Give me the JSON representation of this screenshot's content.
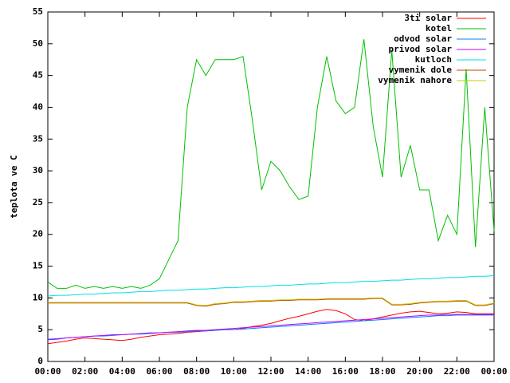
{
  "chart_data": {
    "type": "line",
    "ylabel": "teplota ve C",
    "legend": "top-right",
    "grid": false,
    "xlim": [
      0,
      24
    ],
    "ylim": [
      0,
      55
    ],
    "xticks": [
      {
        "value": 0,
        "label": "00:00"
      },
      {
        "value": 2,
        "label": "02:00"
      },
      {
        "value": 4,
        "label": "04:00"
      },
      {
        "value": 6,
        "label": "06:00"
      },
      {
        "value": 8,
        "label": "08:00"
      },
      {
        "value": 10,
        "label": "10:00"
      },
      {
        "value": 12,
        "label": "12:00"
      },
      {
        "value": 14,
        "label": "14:00"
      },
      {
        "value": 16,
        "label": "16:00"
      },
      {
        "value": 18,
        "label": "18:00"
      },
      {
        "value": 20,
        "label": "20:00"
      },
      {
        "value": 22,
        "label": "22:00"
      },
      {
        "value": 24,
        "label": "00:00"
      }
    ],
    "yticks": [
      0,
      5,
      10,
      15,
      20,
      25,
      30,
      35,
      40,
      45,
      50,
      55
    ],
    "x": [
      0,
      0.5,
      1,
      1.5,
      2,
      2.5,
      3,
      3.5,
      4,
      4.5,
      5,
      5.5,
      6,
      6.5,
      7,
      7.5,
      8,
      8.5,
      9,
      9.5,
      10,
      10.5,
      11,
      11.5,
      12,
      12.5,
      13,
      13.5,
      14,
      14.5,
      15,
      15.5,
      16,
      16.5,
      17,
      17.5,
      18,
      18.5,
      19,
      19.5,
      20,
      20.5,
      21,
      21.5,
      22,
      22.5,
      23,
      23.5,
      24
    ],
    "series": [
      {
        "name": "3ti solar",
        "color": "#ff0000",
        "values": [
          2.8,
          3.0,
          3.2,
          3.5,
          3.7,
          3.6,
          3.5,
          3.4,
          3.3,
          3.5,
          3.8,
          4.0,
          4.2,
          4.3,
          4.4,
          4.6,
          4.7,
          4.8,
          4.9,
          5.0,
          5.0,
          5.2,
          5.5,
          5.7,
          6.0,
          6.4,
          6.8,
          7.1,
          7.5,
          7.9,
          8.2,
          8.0,
          7.5,
          6.6,
          6.4,
          6.7,
          7.0,
          7.3,
          7.6,
          7.8,
          7.9,
          7.7,
          7.5,
          7.6,
          7.8,
          7.7,
          7.5,
          7.5,
          7.5
        ]
      },
      {
        "name": "kotel",
        "color": "#00c000",
        "values": [
          12.5,
          11.5,
          11.5,
          12,
          11.5,
          11.8,
          11.5,
          11.8,
          11.5,
          11.8,
          11.5,
          12,
          13,
          16,
          19,
          40,
          47.5,
          45,
          47.5,
          47.5,
          47.5,
          48,
          38,
          27,
          31.5,
          30,
          27.5,
          25.5,
          26,
          40,
          48,
          41,
          39,
          40,
          50.7,
          37,
          29,
          49,
          29,
          34,
          27,
          27,
          19,
          23,
          20,
          46,
          18,
          40,
          20.5
        ]
      },
      {
        "name": "odvod solar",
        "color": "#0080ff",
        "values": [
          3.5,
          3.6,
          3.7,
          3.8,
          3.9,
          4.0,
          4.0,
          4.1,
          4.2,
          4.3,
          4.3,
          4.4,
          4.5,
          4.6,
          4.6,
          4.7,
          4.8,
          4.8,
          4.9,
          5.0,
          5.0,
          5.1,
          5.2,
          5.3,
          5.4,
          5.5,
          5.6,
          5.7,
          5.8,
          5.9,
          6.0,
          6.1,
          6.2,
          6.3,
          6.4,
          6.5,
          6.6,
          6.7,
          6.8,
          6.9,
          7.0,
          7.1,
          7.2,
          7.2,
          7.3,
          7.3,
          7.3,
          7.3,
          7.3
        ]
      },
      {
        "name": "privod solar",
        "color": "#c000ff",
        "values": [
          3.4,
          3.5,
          3.7,
          3.8,
          3.9,
          4.0,
          4.1,
          4.2,
          4.2,
          4.3,
          4.4,
          4.5,
          4.5,
          4.6,
          4.7,
          4.8,
          4.9,
          4.9,
          5.0,
          5.1,
          5.2,
          5.3,
          5.4,
          5.5,
          5.6,
          5.7,
          5.8,
          5.9,
          6.0,
          6.1,
          6.2,
          6.3,
          6.4,
          6.5,
          6.6,
          6.7,
          6.8,
          6.9,
          7.0,
          7.1,
          7.2,
          7.3,
          7.3,
          7.4,
          7.4,
          7.4,
          7.4,
          7.4,
          7.4
        ]
      },
      {
        "name": "kutloch",
        "color": "#00e0e0",
        "values": [
          10.3,
          10.4,
          10.4,
          10.5,
          10.6,
          10.6,
          10.7,
          10.8,
          10.8,
          10.9,
          11.0,
          11.0,
          11.1,
          11.2,
          11.2,
          11.3,
          11.4,
          11.4,
          11.5,
          11.6,
          11.6,
          11.7,
          11.8,
          11.8,
          11.9,
          12.0,
          12.0,
          12.1,
          12.2,
          12.2,
          12.3,
          12.4,
          12.4,
          12.5,
          12.6,
          12.6,
          12.7,
          12.8,
          12.8,
          12.9,
          13.0,
          13.0,
          13.1,
          13.2,
          13.2,
          13.3,
          13.4,
          13.4,
          13.5
        ]
      },
      {
        "name": "vymenik dole",
        "color": "#c04000",
        "values": [
          9.2,
          9.2,
          9.2,
          9.2,
          9.2,
          9.2,
          9.2,
          9.2,
          9.2,
          9.2,
          9.2,
          9.2,
          9.2,
          9.2,
          9.2,
          9.2,
          8.8,
          8.7,
          9.0,
          9.1,
          9.3,
          9.3,
          9.4,
          9.5,
          9.5,
          9.6,
          9.6,
          9.7,
          9.7,
          9.7,
          9.8,
          9.8,
          9.8,
          9.8,
          9.8,
          9.9,
          9.9,
          8.9,
          8.9,
          9.0,
          9.2,
          9.3,
          9.4,
          9.4,
          9.5,
          9.5,
          8.8,
          8.8,
          9.1
        ]
      },
      {
        "name": "vymenik nahore",
        "color": "#c8c800",
        "values": [
          9.3,
          9.3,
          9.3,
          9.3,
          9.3,
          9.3,
          9.3,
          9.3,
          9.3,
          9.3,
          9.3,
          9.3,
          9.3,
          9.3,
          9.3,
          9.3,
          8.9,
          8.8,
          9.1,
          9.2,
          9.4,
          9.4,
          9.5,
          9.6,
          9.6,
          9.7,
          9.7,
          9.8,
          9.8,
          9.8,
          9.9,
          9.9,
          9.9,
          9.9,
          9.9,
          10.0,
          10.0,
          9.0,
          9.0,
          9.1,
          9.3,
          9.4,
          9.5,
          9.5,
          9.6,
          9.6,
          8.9,
          8.9,
          9.2
        ]
      }
    ]
  }
}
